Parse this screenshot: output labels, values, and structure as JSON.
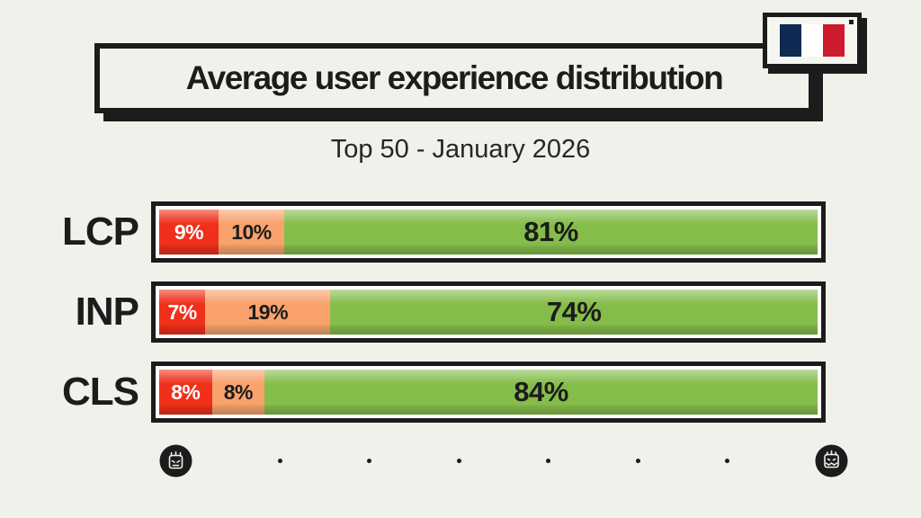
{
  "page": {
    "background": "#f0f1ea",
    "ink": "#1c1c1c"
  },
  "header": {
    "title": "Average user experience distribution",
    "subtitle": "Top 50 - January 2026"
  },
  "flag": {
    "name": "flag-of-france",
    "colors": {
      "blue": "#0f2a53",
      "white": "#ffffff",
      "red": "#cd1b2e"
    }
  },
  "chart_data": {
    "type": "bar",
    "orientation": "horizontal-stacked",
    "title": "Average user experience distribution",
    "subtitle": "Top 50 - January 2026",
    "unit": "%",
    "xlim": [
      0,
      100
    ],
    "grid": false,
    "legend": false,
    "categories": [
      "LCP",
      "INP",
      "CLS"
    ],
    "series": [
      {
        "name": "red",
        "color": "#f0301a",
        "text_color": "#ffffff",
        "values": [
          9,
          7,
          8
        ]
      },
      {
        "name": "orange",
        "color": "#f9a26c",
        "text_color": "#1c1c1c",
        "values": [
          10,
          19,
          8
        ]
      },
      {
        "name": "green",
        "color": "#85bd4a",
        "text_color": "#1c1c1c",
        "values": [
          81,
          74,
          84
        ]
      }
    ]
  },
  "footer": {
    "left_icon": "mascot-face-icon",
    "right_icon": "mascot-face-icon",
    "dot_count": 6
  }
}
